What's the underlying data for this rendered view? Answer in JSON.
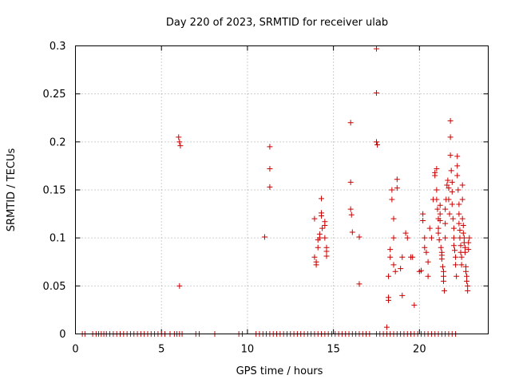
{
  "chart_data": {
    "type": "scatter",
    "title": "Day 220 of 2023, SRMTID for receiver ulab",
    "xlabel": "GPS time / hours",
    "ylabel": "SRMTID / TECUs",
    "xlim": [
      0,
      24
    ],
    "ylim": [
      0,
      0.3
    ],
    "xticks": [
      0,
      5,
      10,
      15,
      20
    ],
    "yticks": [
      0,
      0.05,
      0.1,
      0.15,
      0.2,
      0.25,
      0.3
    ],
    "xtick_labels": [
      "0",
      "5",
      "10",
      "15",
      "20"
    ],
    "ytick_labels": [
      "0",
      "0.05",
      "0.1",
      "0.15",
      "0.2",
      "0.25",
      "0.3"
    ],
    "grid": true,
    "marker": "+",
    "series": [
      {
        "name": "SRMTID",
        "color": "#cc0000",
        "points": [
          [
            0.4,
            0
          ],
          [
            0.55,
            0
          ],
          [
            1.0,
            0
          ],
          [
            1.2,
            0
          ],
          [
            1.35,
            0
          ],
          [
            1.5,
            0
          ],
          [
            1.65,
            0
          ],
          [
            1.8,
            0
          ],
          [
            2.0,
            0
          ],
          [
            2.2,
            0
          ],
          [
            2.4,
            0
          ],
          [
            2.6,
            0
          ],
          [
            2.8,
            0
          ],
          [
            3.0,
            0
          ],
          [
            3.2,
            0
          ],
          [
            3.4,
            0
          ],
          [
            3.6,
            0
          ],
          [
            3.8,
            0
          ],
          [
            4.0,
            0
          ],
          [
            4.2,
            0
          ],
          [
            4.4,
            0
          ],
          [
            4.6,
            0
          ],
          [
            4.8,
            0
          ],
          [
            5.0,
            0
          ],
          [
            5.2,
            0
          ],
          [
            5.5,
            0
          ],
          [
            5.75,
            0
          ],
          [
            5.9,
            0
          ],
          [
            6.05,
            0
          ],
          [
            6.2,
            0
          ],
          [
            7.0,
            0
          ],
          [
            7.2,
            0
          ],
          [
            8.1,
            0
          ],
          [
            9.5,
            0
          ],
          [
            9.7,
            0
          ],
          [
            10.5,
            0
          ],
          [
            10.7,
            0
          ],
          [
            10.9,
            0
          ],
          [
            11.1,
            0
          ],
          [
            11.3,
            0
          ],
          [
            11.5,
            0
          ],
          [
            11.7,
            0
          ],
          [
            11.9,
            0
          ],
          [
            12.1,
            0
          ],
          [
            12.3,
            0
          ],
          [
            12.5,
            0
          ],
          [
            12.7,
            0
          ],
          [
            12.9,
            0
          ],
          [
            13.1,
            0
          ],
          [
            13.3,
            0
          ],
          [
            13.5,
            0
          ],
          [
            13.7,
            0
          ],
          [
            13.9,
            0
          ],
          [
            14.1,
            0
          ],
          [
            14.3,
            0
          ],
          [
            14.5,
            0
          ],
          [
            14.7,
            0
          ],
          [
            14.9,
            0
          ],
          [
            15.1,
            0
          ],
          [
            15.3,
            0
          ],
          [
            15.5,
            0
          ],
          [
            15.7,
            0
          ],
          [
            15.9,
            0
          ],
          [
            16.1,
            0
          ],
          [
            16.3,
            0
          ],
          [
            16.5,
            0
          ],
          [
            16.7,
            0
          ],
          [
            16.9,
            0
          ],
          [
            17.1,
            0
          ],
          [
            17.5,
            0
          ],
          [
            17.7,
            0
          ],
          [
            17.9,
            0
          ],
          [
            18.1,
            0
          ],
          [
            18.3,
            0
          ],
          [
            18.5,
            0
          ],
          [
            18.7,
            0
          ],
          [
            18.9,
            0
          ],
          [
            19.1,
            0
          ],
          [
            19.3,
            0
          ],
          [
            19.5,
            0
          ],
          [
            19.7,
            0
          ],
          [
            19.9,
            0
          ],
          [
            20.1,
            0
          ],
          [
            20.3,
            0
          ],
          [
            20.5,
            0
          ],
          [
            20.7,
            0
          ],
          [
            20.9,
            0
          ],
          [
            21.1,
            0
          ],
          [
            21.3,
            0
          ],
          [
            21.5,
            0
          ],
          [
            21.7,
            0
          ],
          [
            21.9,
            0
          ],
          [
            22.1,
            0
          ],
          [
            6.0,
            0.205
          ],
          [
            6.05,
            0.2
          ],
          [
            6.1,
            0.196
          ],
          [
            6.05,
            0.05
          ],
          [
            11.0,
            0.101
          ],
          [
            11.3,
            0.195
          ],
          [
            11.3,
            0.172
          ],
          [
            11.3,
            0.153
          ],
          [
            13.9,
            0.12
          ],
          [
            13.9,
            0.08
          ],
          [
            14.0,
            0.072
          ],
          [
            14.0,
            0.075
          ],
          [
            14.1,
            0.09
          ],
          [
            14.1,
            0.098
          ],
          [
            14.2,
            0.104
          ],
          [
            14.2,
            0.1
          ],
          [
            14.3,
            0.141
          ],
          [
            14.3,
            0.126
          ],
          [
            14.3,
            0.123
          ],
          [
            14.35,
            0.11
          ],
          [
            14.5,
            0.113
          ],
          [
            14.5,
            0.117
          ],
          [
            14.5,
            0.1
          ],
          [
            14.6,
            0.09
          ],
          [
            14.6,
            0.086
          ],
          [
            14.6,
            0.081
          ],
          [
            16.0,
            0.22
          ],
          [
            16.0,
            0.158
          ],
          [
            16.0,
            0.13
          ],
          [
            16.05,
            0.124
          ],
          [
            16.1,
            0.106
          ],
          [
            16.5,
            0.101
          ],
          [
            16.5,
            0.052
          ],
          [
            17.5,
            0.297
          ],
          [
            17.5,
            0.251
          ],
          [
            17.5,
            0.2
          ],
          [
            17.55,
            0.197
          ],
          [
            18.1,
            0.007
          ],
          [
            18.2,
            0.035
          ],
          [
            18.2,
            0.038
          ],
          [
            18.2,
            0.06
          ],
          [
            18.3,
            0.08
          ],
          [
            18.3,
            0.088
          ],
          [
            18.4,
            0.15
          ],
          [
            18.4,
            0.14
          ],
          [
            18.5,
            0.12
          ],
          [
            18.5,
            0.1
          ],
          [
            18.5,
            0.072
          ],
          [
            18.6,
            0.065
          ],
          [
            18.7,
            0.152
          ],
          [
            18.7,
            0.161
          ],
          [
            18.9,
            0.068
          ],
          [
            19.0,
            0.08
          ],
          [
            19.0,
            0.04
          ],
          [
            19.2,
            0.105
          ],
          [
            19.3,
            0.1
          ],
          [
            19.5,
            0.08
          ],
          [
            19.6,
            0.08
          ],
          [
            19.7,
            0.03
          ],
          [
            20.0,
            0.065
          ],
          [
            20.1,
            0.066
          ],
          [
            20.2,
            0.125
          ],
          [
            20.2,
            0.118
          ],
          [
            20.3,
            0.1
          ],
          [
            20.3,
            0.09
          ],
          [
            20.4,
            0.085
          ],
          [
            20.5,
            0.075
          ],
          [
            20.5,
            0.06
          ],
          [
            20.6,
            0.11
          ],
          [
            20.7,
            0.1
          ],
          [
            20.8,
            0.14
          ],
          [
            20.9,
            0.168
          ],
          [
            20.9,
            0.165
          ],
          [
            21.0,
            0.172
          ],
          [
            21.0,
            0.15
          ],
          [
            21.0,
            0.14
          ],
          [
            21.05,
            0.13
          ],
          [
            21.1,
            0.12
          ],
          [
            21.1,
            0.11
          ],
          [
            21.1,
            0.105
          ],
          [
            21.15,
            0.098
          ],
          [
            21.2,
            0.134
          ],
          [
            21.2,
            0.125
          ],
          [
            21.2,
            0.118
          ],
          [
            21.25,
            0.09
          ],
          [
            21.3,
            0.085
          ],
          [
            21.3,
            0.082
          ],
          [
            21.3,
            0.078
          ],
          [
            21.35,
            0.07
          ],
          [
            21.4,
            0.065
          ],
          [
            21.4,
            0.06
          ],
          [
            21.4,
            0.055
          ],
          [
            21.45,
            0.045
          ],
          [
            21.5,
            0.1
          ],
          [
            21.5,
            0.115
          ],
          [
            21.5,
            0.13
          ],
          [
            21.55,
            0.14
          ],
          [
            21.6,
            0.155
          ],
          [
            21.65,
            0.16
          ],
          [
            21.7,
            0.152
          ],
          [
            21.7,
            0.14
          ],
          [
            21.75,
            0.125
          ],
          [
            21.8,
            0.222
          ],
          [
            21.8,
            0.205
          ],
          [
            21.8,
            0.186
          ],
          [
            21.85,
            0.17
          ],
          [
            21.9,
            0.158
          ],
          [
            21.9,
            0.148
          ],
          [
            21.9,
            0.135
          ],
          [
            21.95,
            0.12
          ],
          [
            22.0,
            0.11
          ],
          [
            22.0,
            0.1
          ],
          [
            22.0,
            0.092
          ],
          [
            22.05,
            0.087
          ],
          [
            22.1,
            0.08
          ],
          [
            22.1,
            0.072
          ],
          [
            22.15,
            0.06
          ],
          [
            22.2,
            0.185
          ],
          [
            22.2,
            0.175
          ],
          [
            22.2,
            0.165
          ],
          [
            22.25,
            0.15
          ],
          [
            22.3,
            0.135
          ],
          [
            22.3,
            0.125
          ],
          [
            22.3,
            0.115
          ],
          [
            22.35,
            0.108
          ],
          [
            22.35,
            0.1
          ],
          [
            22.4,
            0.092
          ],
          [
            22.4,
            0.085
          ],
          [
            22.45,
            0.08
          ],
          [
            22.45,
            0.072
          ],
          [
            22.5,
            0.155
          ],
          [
            22.5,
            0.14
          ],
          [
            22.5,
            0.12
          ],
          [
            22.55,
            0.113
          ],
          [
            22.55,
            0.105
          ],
          [
            22.6,
            0.1
          ],
          [
            22.6,
            0.095
          ],
          [
            22.65,
            0.09
          ],
          [
            22.65,
            0.085
          ],
          [
            22.7,
            0.07
          ],
          [
            22.7,
            0.065
          ],
          [
            22.75,
            0.06
          ],
          [
            22.75,
            0.055
          ],
          [
            22.8,
            0.05
          ],
          [
            22.8,
            0.045
          ],
          [
            22.85,
            0.095
          ],
          [
            22.85,
            0.088
          ],
          [
            22.9,
            0.1
          ]
        ]
      }
    ]
  }
}
